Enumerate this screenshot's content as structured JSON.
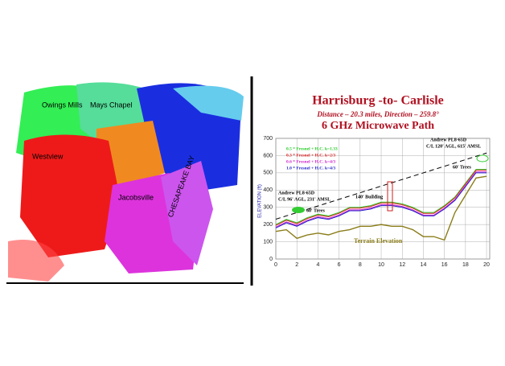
{
  "map": {
    "labels": [
      "Owings Mills",
      "Mays Chapel",
      "Westview",
      "Jacobsville",
      "CHESAPEAKE BAY"
    ]
  },
  "chart_data": {
    "type": "line",
    "title": "Harrisburg -to- Carlisle",
    "subtitle": "Distance – 20.3 miles, Direction – 259.8°",
    "subtitle2": "6 GHz Microwave Path",
    "y_label": "ELEVATION (ft)",
    "x": [
      0,
      1,
      2,
      3,
      4,
      5,
      6,
      7,
      8,
      9,
      10,
      11,
      12,
      13,
      14,
      15,
      16,
      17,
      18,
      19,
      20
    ],
    "xlim": [
      0,
      20.3
    ],
    "xticks": [
      0,
      2,
      4,
      6,
      8,
      10,
      12,
      14,
      16,
      18,
      20
    ],
    "ylim": [
      0,
      700
    ],
    "yticks": [
      0,
      100,
      200,
      300,
      400,
      500,
      600,
      700
    ],
    "grid": true,
    "series": [
      {
        "name": "0.5 * Fresnel + H.C. k=1.33",
        "color": "#22cc22",
        "values": [
          200,
          230,
          210,
          240,
          260,
          250,
          270,
          300,
          300,
          310,
          330,
          330,
          320,
          300,
          270,
          270,
          310,
          360,
          440,
          520,
          520
        ]
      },
      {
        "name": "0.3 * Fresnel + H.C. k=2/3",
        "color": "#dd2222",
        "values": [
          195,
          225,
          205,
          235,
          255,
          245,
          265,
          295,
          295,
          305,
          325,
          325,
          315,
          295,
          265,
          265,
          305,
          355,
          435,
          515,
          515
        ]
      },
      {
        "name": "0.6 * Fresnel + H.C. k=4/3",
        "color": "#cc22cc",
        "values": [
          185,
          215,
          195,
          225,
          245,
          235,
          255,
          285,
          285,
          295,
          315,
          315,
          305,
          285,
          255,
          255,
          295,
          345,
          425,
          505,
          505
        ]
      },
      {
        "name": "1.0 * Fresnel + H.C. k=4/3",
        "color": "#2222cc",
        "values": [
          180,
          210,
          190,
          220,
          240,
          230,
          250,
          280,
          280,
          290,
          310,
          310,
          300,
          280,
          250,
          250,
          290,
          340,
          420,
          500,
          500
        ]
      },
      {
        "name": "Terrain Elevation",
        "color": "#8b7d1a",
        "values": [
          160,
          170,
          120,
          140,
          150,
          140,
          160,
          170,
          190,
          190,
          200,
          190,
          190,
          170,
          130,
          130,
          110,
          270,
          370,
          470,
          480
        ]
      }
    ],
    "sight_line": {
      "x": [
        0,
        20
      ],
      "values": [
        231,
        615
      ],
      "color": "#000000"
    },
    "annotations": [
      "Andrew PL8-65D",
      "C/L 96' AGL, 231' AMSL",
      "Andrew PL8-65D",
      "C/L 120' AGL, 615' AMSL",
      "60' Trees",
      "60' Trees",
      "140' Building"
    ]
  }
}
